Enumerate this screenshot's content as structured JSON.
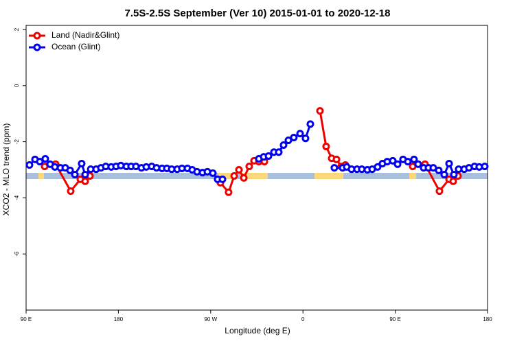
{
  "chart_data": {
    "type": "line",
    "title": "7.5S-2.5S September (Ver 10)   2015-01-01 to 2020-12-18",
    "x_label": "Longitude (deg E)",
    "y_label": "XCO2 - MLO trend (ppm)",
    "xlim": [
      90,
      540
    ],
    "xticks": [
      {
        "value": 90,
        "label": "90 E"
      },
      180,
      {
        "value": 270,
        "label": "90 W"
      },
      {
        "value": 360,
        "label": "0"
      },
      {
        "value": 450,
        "label": "90 E"
      },
      {
        "value": 540,
        "label": "180"
      }
    ],
    "ylim": [
      -8,
      2
    ],
    "yticks": [
      -6,
      -4,
      -2,
      0,
      2
    ],
    "legend": "top-left",
    "series": [
      {
        "name": "Land (Nadir&Glint)",
        "color": "#ee0000",
        "x": [
          108.1,
          118.8,
          133.5,
          142.9,
          147.6,
          152.3,
          200,
          279.5,
          287.5,
          292.9,
          297.6,
          302.3,
          307.6,
          312.3,
          317.0,
          322.4,
          340,
          376.6,
          382.6,
          388.0,
          392.7,
          397.3,
          401.4,
          450,
          467.0,
          479.0,
          493.1,
          502.5,
          506.5,
          511.2
        ],
        "values": [
          -2.88,
          -2.8,
          -3.76,
          -3.34,
          -3.41,
          -3.22,
          null,
          -3.46,
          -3.8,
          -3.22,
          -3.0,
          -3.29,
          -2.88,
          -2.68,
          -2.71,
          -2.71,
          null,
          -0.9,
          -2.17,
          -2.59,
          -2.63,
          -2.88,
          -2.83,
          null,
          -2.88,
          -2.8,
          -3.76,
          -3.34,
          -3.41,
          -3.22
        ]
      },
      {
        "name": "Ocean (Glint)",
        "color": "#0000ee",
        "x": [
          93.3,
          98.7,
          103.4,
          108.7,
          113.4,
          118.1,
          123.5,
          128.2,
          132.9,
          137.6,
          144.2,
          147.6,
          153.0,
          158.3,
          163.0,
          167.7,
          173.0,
          177.7,
          182.4,
          187.8,
          192.4,
          197.1,
          202.5,
          207.2,
          212.5,
          217.2,
          222.6,
          227.3,
          232.0,
          237.3,
          242.0,
          247.4,
          252.0,
          256.7,
          262.1,
          266.8,
          272.1,
          276.8,
          281.5,
          299,
          317.0,
          321.7,
          326.4,
          331.7,
          336.4,
          341.1,
          345.8,
          351.1,
          357.2,
          362.5,
          367.2,
          379,
          390.6,
          398.7,
          402.7,
          407.4,
          412.7,
          417.4,
          422.8,
          427.5,
          432.8,
          437.5,
          442.2,
          447.6,
          452.3,
          457.6,
          462.3,
          468.3,
          472.3,
          477.7,
          482.4,
          487.1,
          492.4,
          497.8,
          502.5,
          507.2,
          511.8,
          517.2,
          521.9,
          527.3,
          531.9,
          537.3
        ],
        "values": [
          -2.83,
          -2.63,
          -2.71,
          -2.61,
          -2.8,
          -2.9,
          -2.93,
          -2.93,
          -3.02,
          -3.17,
          -2.78,
          -3.17,
          -2.98,
          -2.98,
          -2.93,
          -2.88,
          -2.9,
          -2.88,
          -2.85,
          -2.88,
          -2.88,
          -2.88,
          -2.93,
          -2.9,
          -2.88,
          -2.93,
          -2.95,
          -2.95,
          -2.98,
          -2.98,
          -2.95,
          -2.95,
          -3.0,
          -3.07,
          -3.1,
          -3.07,
          -3.12,
          -3.34,
          -3.34,
          null,
          -2.61,
          -2.54,
          -2.51,
          -2.37,
          -2.37,
          -2.12,
          -1.95,
          -1.85,
          -1.71,
          -1.88,
          -1.37,
          null,
          -2.93,
          -2.93,
          -2.9,
          -2.98,
          -2.98,
          -2.98,
          -3.0,
          -2.98,
          -2.9,
          -2.78,
          -2.71,
          -2.68,
          -2.8,
          -2.63,
          -2.71,
          -2.63,
          -2.8,
          -2.93,
          -2.93,
          -2.93,
          -3.02,
          -3.17,
          -2.78,
          -3.17,
          -2.98,
          -2.98,
          -2.93,
          -2.88,
          -2.9,
          -2.88
        ]
      }
    ]
  }
}
